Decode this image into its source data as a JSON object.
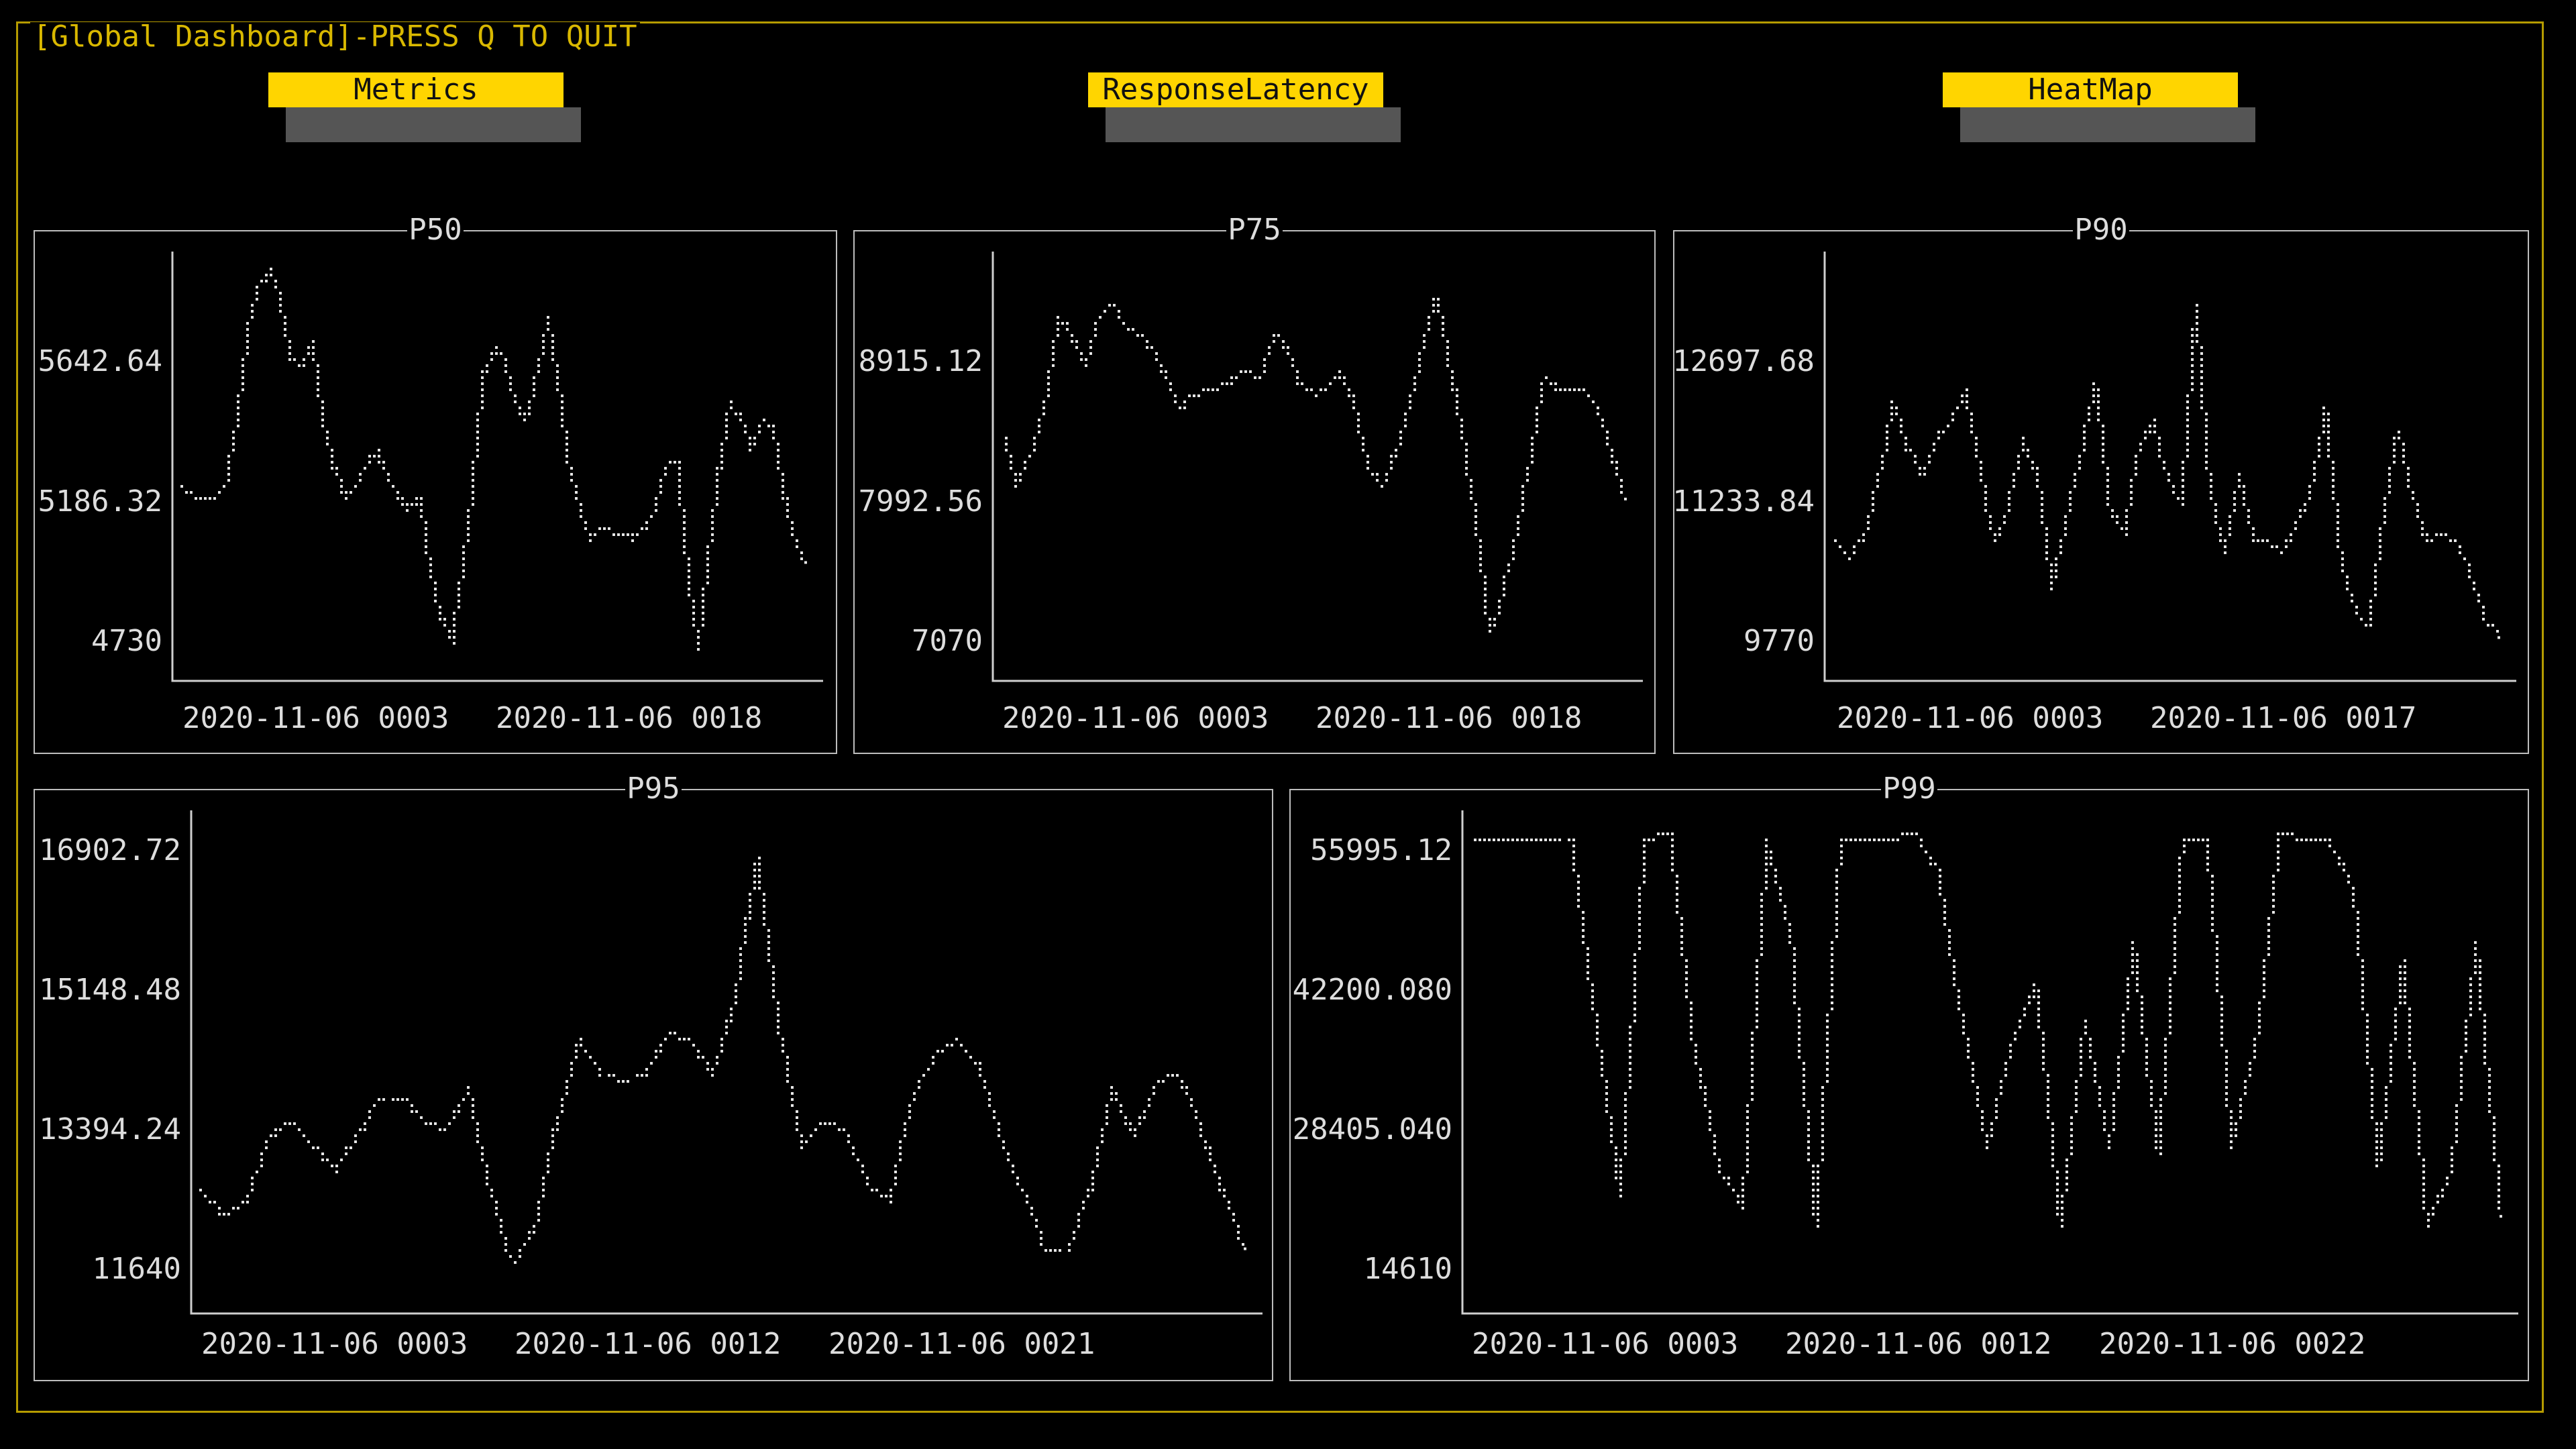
{
  "window": {
    "title": "[Global Dashboard]-PRESS Q TO QUIT"
  },
  "tabs": [
    {
      "label": "Metrics"
    },
    {
      "label": "ResponseLatency"
    },
    {
      "label": "HeatMap"
    }
  ],
  "colors": {
    "frame": "#b59b00",
    "title_text": "#d9b800",
    "tab_bg": "#ffd500",
    "tab_shadow": "#555555",
    "panel_border": "#bdbdbd",
    "text": "#dddddd"
  },
  "chart_data": [
    {
      "type": "line",
      "title": "P50",
      "y_ticks": [
        "5642.64",
        "5186.32",
        "4730"
      ],
      "ylim": [
        4730,
        6099
      ],
      "x_tick_labels": [
        "2020-11-06 0003",
        "2020-11-06 0018"
      ],
      "series": [
        {
          "values": [
            5330,
            5300,
            5290,
            5290,
            5350,
            5550,
            5850,
            5980,
            6050,
            5950,
            5750,
            5720,
            5800,
            5550,
            5400,
            5300,
            5330,
            5400,
            5450,
            5370,
            5300,
            5250,
            5300,
            5050,
            4900,
            4820,
            5050,
            5350,
            5700,
            5780,
            5750,
            5600,
            5550,
            5700,
            5880,
            5650,
            5400,
            5250,
            5150,
            5200,
            5180,
            5180,
            5160,
            5200,
            5250,
            5400,
            5420,
            5050,
            4790,
            5120,
            5400,
            5600,
            5550,
            5450,
            5550,
            5520,
            5300,
            5150,
            5080
          ]
        }
      ]
    },
    {
      "type": "line",
      "title": "P75",
      "y_ticks": [
        "8915.12",
        "7992.56",
        "7070"
      ],
      "ylim": [
        7070,
        9838
      ],
      "x_tick_labels": [
        "2020-11-06 0003",
        "2020-11-06 0018"
      ],
      "series": [
        {
          "values": [
            8600,
            8300,
            8500,
            8800,
            9400,
            9300,
            9100,
            9400,
            9500,
            9350,
            9300,
            9200,
            9000,
            8800,
            8900,
            8920,
            8950,
            9000,
            9050,
            9000,
            9300,
            9200,
            8950,
            8900,
            8950,
            9050,
            8800,
            8400,
            8300,
            8500,
            8800,
            9200,
            9550,
            9100,
            8600,
            8000,
            7300,
            7600,
            8000,
            8500,
            9000,
            8930,
            8920,
            8910,
            8800,
            8500,
            8200
          ]
        }
      ]
    },
    {
      "type": "line",
      "title": "P90",
      "y_ticks": [
        "12697.68",
        "11233.84",
        "9770"
      ],
      "ylim": [
        9770,
        14162
      ],
      "x_tick_labels": [
        "2020-11-06 0003",
        "2020-11-06 0017"
      ],
      "series": [
        {
          "values": [
            11100,
            10950,
            11200,
            11800,
            12600,
            12100,
            11800,
            12200,
            12400,
            12700,
            11900,
            11100,
            11500,
            12200,
            11800,
            10600,
            11400,
            12000,
            12800,
            11500,
            11200,
            12100,
            12400,
            11800,
            11500,
            13600,
            11600,
            11000,
            11800,
            11150,
            11100,
            11000,
            11300,
            11700,
            12500,
            11000,
            10400,
            10200,
            11400,
            12300,
            11600,
            11100,
            11200,
            11100,
            10800,
            10300,
            10100
          ]
        }
      ]
    },
    {
      "type": "line",
      "title": "P95",
      "y_ticks": [
        "16902.72",
        "15148.48",
        "13394.24",
        "11640"
      ],
      "ylim": [
        11640,
        17780
      ],
      "x_tick_labels": [
        "2020-11-06 0003",
        "2020-11-06 0012",
        "2020-11-06 0021"
      ],
      "series": [
        {
          "values": [
            13000,
            12700,
            12900,
            13700,
            13900,
            13600,
            13300,
            13700,
            14200,
            14200,
            13900,
            13800,
            14300,
            13000,
            12100,
            12600,
            13900,
            14900,
            14500,
            14400,
            14500,
            15000,
            14900,
            14500,
            15400,
            17200,
            15100,
            13600,
            13900,
            13800,
            13100,
            12900,
            14200,
            14700,
            14900,
            14600,
            13700,
            13000,
            12300,
            12300,
            13000,
            14300,
            13700,
            14400,
            14500,
            13800,
            13000,
            12300
          ]
        }
      ]
    },
    {
      "type": "line",
      "title": "P99",
      "y_ticks": [
        "55995.12",
        "42200.080",
        "28405.040",
        "14610"
      ],
      "ylim": [
        14610,
        62893
      ],
      "x_tick_labels": [
        "2020-11-06 0003",
        "2020-11-06 0012",
        "2020-11-06 0022"
      ],
      "series": [
        {
          "values": [
            60000,
            60000,
            60000,
            60000,
            60000,
            42000,
            25000,
            60000,
            61000,
            40000,
            28000,
            24000,
            60000,
            50000,
            22000,
            60000,
            60000,
            60000,
            61000,
            57000,
            42000,
            30000,
            40000,
            46000,
            22000,
            42000,
            30000,
            50000,
            29000,
            60000,
            60000,
            30000,
            40000,
            61000,
            60000,
            60000,
            55000,
            28000,
            48000,
            22000,
            28000,
            50000,
            23000
          ]
        }
      ]
    }
  ]
}
